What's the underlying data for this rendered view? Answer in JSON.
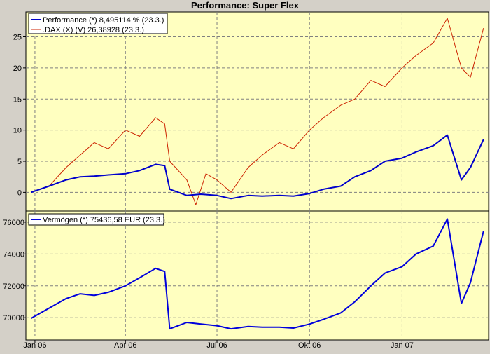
{
  "colors": {
    "background": "#d4d0c8",
    "plot": "#ffffc0",
    "grid": "#808080",
    "performance": "#0000cc",
    "dax": "#cc2200",
    "vermoegen": "#0000dd"
  },
  "chart_data": [
    {
      "type": "line",
      "title": "Performance: Super Flex",
      "grid": true,
      "legend_position": "top-left",
      "x_ticks": [
        "Jan 06",
        "Apr 06",
        "Jul 06",
        "Okt 06",
        "Jan 07"
      ],
      "ylim": [
        -3,
        29
      ],
      "y_ticks": [
        "0",
        "5",
        "10",
        "15",
        "20",
        "25"
      ],
      "series": [
        {
          "name": "Performance (*) 8,495114 % (23.3.)",
          "color": "#0000cc",
          "x": [
            "2005-12-28",
            "2006-01-15",
            "2006-02-01",
            "2006-02-15",
            "2006-03-01",
            "2006-03-15",
            "2006-04-01",
            "2006-04-15",
            "2006-05-01",
            "2006-05-10",
            "2006-05-15",
            "2006-06-01",
            "2006-06-15",
            "2006-07-01",
            "2006-07-15",
            "2006-08-01",
            "2006-08-15",
            "2006-09-01",
            "2006-09-15",
            "2006-10-01",
            "2006-10-15",
            "2006-11-01",
            "2006-11-15",
            "2006-12-01",
            "2006-12-15",
            "2007-01-01",
            "2007-01-15",
            "2007-02-01",
            "2007-02-15",
            "2007-03-01",
            "2007-03-10",
            "2007-03-23"
          ],
          "values": [
            0,
            1.0,
            2.0,
            2.5,
            2.6,
            2.8,
            3.0,
            3.5,
            4.5,
            4.3,
            0.5,
            -0.5,
            -0.3,
            -0.5,
            -1.0,
            -0.5,
            -0.6,
            -0.5,
            -0.6,
            -0.2,
            0.5,
            1.0,
            2.5,
            3.5,
            5.0,
            5.5,
            6.5,
            7.5,
            9.2,
            2.0,
            4.0,
            8.5
          ]
        },
        {
          "name": ".DAX (X) (V) 26,38928 (23.3.)",
          "color": "#cc2200",
          "x": [
            "2005-12-28",
            "2006-01-15",
            "2006-02-01",
            "2006-02-15",
            "2006-03-01",
            "2006-03-15",
            "2006-04-01",
            "2006-04-15",
            "2006-05-01",
            "2006-05-10",
            "2006-05-15",
            "2006-06-01",
            "2006-06-10",
            "2006-06-20",
            "2006-07-01",
            "2006-07-15",
            "2006-08-01",
            "2006-08-15",
            "2006-09-01",
            "2006-09-15",
            "2006-10-01",
            "2006-10-15",
            "2006-11-01",
            "2006-11-15",
            "2006-12-01",
            "2006-12-15",
            "2007-01-01",
            "2007-01-15",
            "2007-02-01",
            "2007-02-15",
            "2007-03-01",
            "2007-03-10",
            "2007-03-23"
          ],
          "values": [
            0,
            1.0,
            4.0,
            6.0,
            8.0,
            7.0,
            10.0,
            9.0,
            12.0,
            11.0,
            5.0,
            2.0,
            -2.0,
            3.0,
            2.0,
            0.0,
            4.0,
            6.0,
            8.0,
            7.0,
            10.0,
            12.0,
            14.0,
            15.0,
            18.0,
            17.0,
            20.0,
            22.0,
            24.0,
            28.0,
            20.0,
            18.5,
            26.4
          ]
        }
      ]
    },
    {
      "type": "line",
      "grid": true,
      "legend_position": "top-left",
      "x_ticks": [
        "Jan 06",
        "Apr 06",
        "Jul 06",
        "Okt 06",
        "Jan 07"
      ],
      "ylim": [
        68600,
        76700
      ],
      "y_ticks": [
        "70000",
        "72000",
        "74000",
        "76000"
      ],
      "series": [
        {
          "name": "Vermögen (*) 75436,58 EUR (23.3.)",
          "color": "#0000dd",
          "x": [
            "2005-12-28",
            "2006-01-15",
            "2006-02-01",
            "2006-02-15",
            "2006-03-01",
            "2006-03-15",
            "2006-04-01",
            "2006-04-15",
            "2006-05-01",
            "2006-05-10",
            "2006-05-15",
            "2006-06-01",
            "2006-06-15",
            "2006-07-01",
            "2006-07-15",
            "2006-08-01",
            "2006-08-15",
            "2006-09-01",
            "2006-09-15",
            "2006-10-01",
            "2006-10-15",
            "2006-11-01",
            "2006-11-15",
            "2006-12-01",
            "2006-12-15",
            "2007-01-01",
            "2007-01-15",
            "2007-02-01",
            "2007-02-15",
            "2007-03-01",
            "2007-03-10",
            "2007-03-23"
          ],
          "values": [
            69950,
            70600,
            71200,
            71500,
            71400,
            71600,
            72000,
            72500,
            73100,
            72900,
            69300,
            69700,
            69600,
            69500,
            69300,
            69450,
            69400,
            69400,
            69350,
            69600,
            69900,
            70300,
            71000,
            72000,
            72800,
            73200,
            74000,
            74500,
            76200,
            70900,
            72200,
            75437
          ]
        }
      ]
    }
  ]
}
